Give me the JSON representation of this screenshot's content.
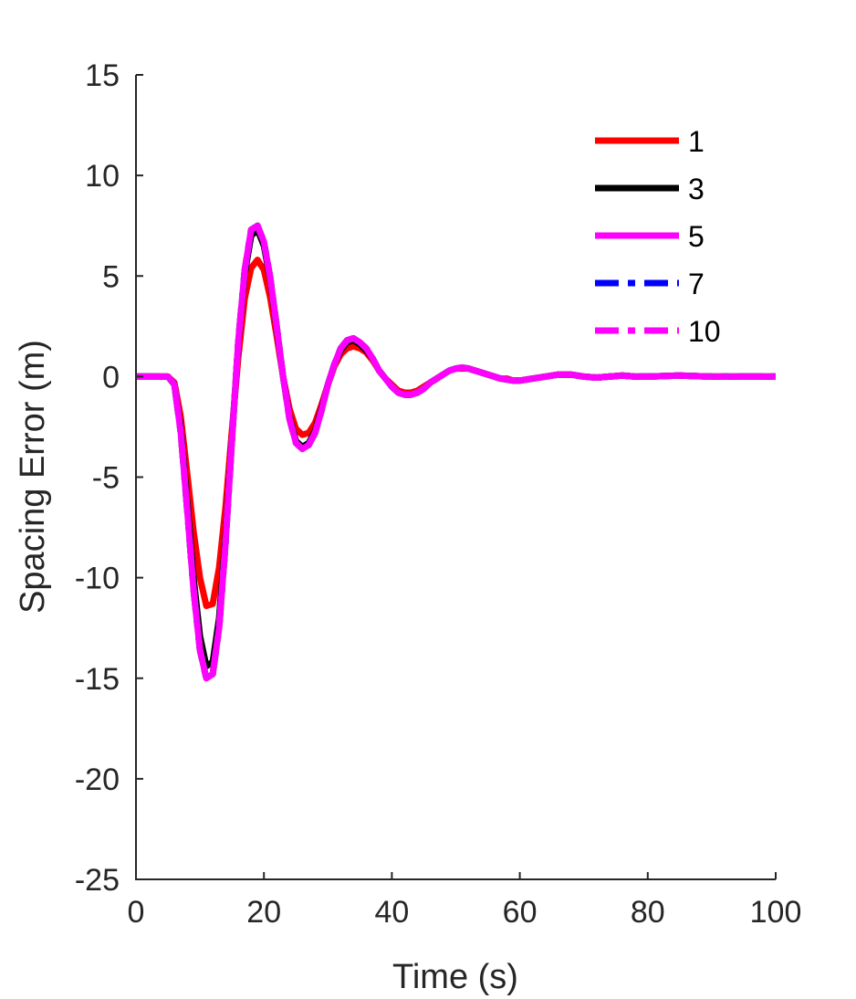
{
  "chart_data": {
    "type": "line",
    "title": "",
    "xlabel": "Time (s)",
    "ylabel": "Spacing Error (m)",
    "xlim": [
      0,
      100
    ],
    "ylim": [
      -25,
      15
    ],
    "xticks": [
      0,
      20,
      40,
      60,
      80,
      100
    ],
    "yticks": [
      -25,
      -20,
      -15,
      -10,
      -5,
      0,
      5,
      10,
      15
    ],
    "xtick_labels": [
      "0",
      "20",
      "40",
      "60",
      "80",
      "100"
    ],
    "ytick_labels": [
      "-25",
      "-20",
      "-15",
      "-10",
      "-5",
      "0",
      "5",
      "10",
      "15"
    ],
    "grid": false,
    "legend_position": "top-right",
    "series": [
      {
        "name": "1",
        "color": "#ff0000",
        "dash": "solid",
        "x": [
          0,
          5,
          6,
          7,
          8,
          9,
          10,
          11,
          12,
          13,
          14,
          15,
          16,
          17,
          18,
          19,
          20,
          21,
          22,
          23,
          24,
          25,
          26,
          27,
          28,
          29,
          30,
          31,
          32,
          33,
          34,
          35,
          36,
          37,
          38,
          39,
          40,
          41,
          42,
          43,
          44,
          45,
          46,
          47,
          48,
          49,
          50,
          51,
          52,
          53,
          54,
          55,
          56,
          57,
          58,
          59,
          60,
          62,
          64,
          66,
          68,
          70,
          72,
          74,
          76,
          78,
          80,
          85,
          90,
          95,
          100
        ],
        "values": [
          0,
          0,
          -0.3,
          -2.0,
          -4.8,
          -7.7,
          -10.0,
          -11.4,
          -11.3,
          -9.5,
          -6.5,
          -2.7,
          1.0,
          3.9,
          5.4,
          5.8,
          5.3,
          3.9,
          2.0,
          0.0,
          -1.6,
          -2.6,
          -2.9,
          -2.8,
          -2.3,
          -1.4,
          -0.4,
          0.5,
          1.1,
          1.4,
          1.5,
          1.4,
          1.2,
          0.8,
          0.3,
          -0.1,
          -0.4,
          -0.7,
          -0.8,
          -0.8,
          -0.7,
          -0.5,
          -0.3,
          -0.1,
          0.1,
          0.3,
          0.4,
          0.4,
          0.4,
          0.3,
          0.2,
          0.1,
          0.0,
          -0.1,
          -0.1,
          -0.2,
          -0.2,
          -0.1,
          0.0,
          0.1,
          0.1,
          0.0,
          -0.05,
          0.0,
          0.05,
          0.0,
          0.0,
          0.05,
          0.0,
          0.0,
          0.0
        ]
      },
      {
        "name": "3",
        "color": "#000000",
        "dash": "solid",
        "x": [
          0,
          5,
          6,
          7,
          8,
          9,
          10,
          11,
          12,
          13,
          14,
          15,
          16,
          17,
          18,
          19,
          20,
          21,
          22,
          23,
          24,
          25,
          26,
          27,
          28,
          29,
          30,
          31,
          32,
          33,
          34,
          35,
          36,
          37,
          38,
          39,
          40,
          41,
          42,
          43,
          44,
          45,
          46,
          47,
          48,
          49,
          50,
          51,
          52,
          53,
          54,
          55,
          56,
          57,
          58,
          59,
          60,
          62,
          64,
          66,
          68,
          70,
          72,
          74,
          76,
          78,
          80,
          85,
          90,
          95,
          100
        ],
        "values": [
          0,
          0,
          -0.4,
          -2.6,
          -6.2,
          -10.0,
          -12.9,
          -14.4,
          -14.2,
          -12.0,
          -8.0,
          -3.1,
          1.7,
          5.1,
          7.0,
          7.3,
          6.5,
          4.8,
          2.4,
          0.0,
          -2.0,
          -3.2,
          -3.5,
          -3.3,
          -2.7,
          -1.6,
          -0.4,
          0.6,
          1.3,
          1.7,
          1.8,
          1.6,
          1.3,
          0.9,
          0.3,
          -0.1,
          -0.5,
          -0.8,
          -0.9,
          -0.9,
          -0.8,
          -0.6,
          -0.3,
          -0.1,
          0.1,
          0.3,
          0.4,
          0.45,
          0.4,
          0.3,
          0.2,
          0.1,
          0.0,
          -0.1,
          -0.15,
          -0.2,
          -0.2,
          -0.1,
          0.0,
          0.1,
          0.1,
          0.0,
          -0.05,
          0.0,
          0.05,
          0.0,
          0.0,
          0.05,
          0.0,
          0.0,
          0.0
        ]
      },
      {
        "name": "5",
        "color": "#ff00ff",
        "dash": "solid",
        "x": [
          0,
          5,
          6,
          7,
          8,
          9,
          10,
          11,
          12,
          13,
          14,
          15,
          16,
          17,
          18,
          19,
          20,
          21,
          22,
          23,
          24,
          25,
          26,
          27,
          28,
          29,
          30,
          31,
          32,
          33,
          34,
          35,
          36,
          37,
          38,
          39,
          40,
          41,
          42,
          43,
          44,
          45,
          46,
          47,
          48,
          49,
          50,
          51,
          52,
          53,
          54,
          55,
          56,
          57,
          58,
          59,
          60,
          62,
          64,
          66,
          68,
          70,
          72,
          74,
          76,
          78,
          80,
          85,
          90,
          95,
          100
        ],
        "values": [
          0,
          0,
          -0.4,
          -2.8,
          -6.6,
          -10.6,
          -13.6,
          -15.0,
          -14.8,
          -12.5,
          -8.3,
          -3.2,
          1.8,
          5.3,
          7.3,
          7.5,
          6.7,
          4.9,
          2.5,
          0.0,
          -2.1,
          -3.3,
          -3.6,
          -3.4,
          -2.8,
          -1.7,
          -0.4,
          0.6,
          1.4,
          1.8,
          1.9,
          1.7,
          1.4,
          0.9,
          0.3,
          -0.1,
          -0.5,
          -0.8,
          -0.9,
          -0.9,
          -0.8,
          -0.6,
          -0.3,
          -0.1,
          0.1,
          0.3,
          0.4,
          0.45,
          0.4,
          0.3,
          0.2,
          0.1,
          0.0,
          -0.1,
          -0.15,
          -0.2,
          -0.2,
          -0.1,
          0.0,
          0.1,
          0.1,
          0.0,
          -0.05,
          0.0,
          0.05,
          0.0,
          0.0,
          0.05,
          0.0,
          0.0,
          0.0
        ]
      },
      {
        "name": "7",
        "color": "#0000ff",
        "dash": "dashdot",
        "x": [
          0,
          5,
          6,
          7,
          8,
          9,
          10,
          11,
          12,
          13,
          14,
          15,
          16,
          17,
          18,
          19,
          20,
          21,
          22,
          23,
          24,
          25,
          26,
          27,
          28,
          29,
          30,
          31,
          32,
          33,
          34,
          35,
          36,
          37,
          38,
          39,
          40,
          41,
          42,
          43,
          44,
          45,
          46,
          47,
          48,
          49,
          50,
          51,
          52,
          53,
          54,
          55,
          56,
          57,
          58,
          59,
          60,
          62,
          64,
          66,
          68,
          70,
          72,
          74,
          76,
          78,
          80,
          85,
          90,
          95,
          100
        ],
        "values": [
          0,
          0,
          -0.4,
          -2.8,
          -6.6,
          -10.6,
          -13.6,
          -15.0,
          -14.8,
          -12.5,
          -8.3,
          -3.2,
          1.8,
          5.3,
          7.3,
          7.5,
          6.7,
          4.9,
          2.5,
          0.0,
          -2.1,
          -3.3,
          -3.6,
          -3.4,
          -2.8,
          -1.7,
          -0.4,
          0.6,
          1.4,
          1.8,
          1.9,
          1.7,
          1.4,
          0.9,
          0.3,
          -0.1,
          -0.5,
          -0.8,
          -0.9,
          -0.9,
          -0.8,
          -0.6,
          -0.3,
          -0.1,
          0.1,
          0.3,
          0.4,
          0.45,
          0.4,
          0.3,
          0.2,
          0.1,
          0.0,
          -0.1,
          -0.15,
          -0.2,
          -0.2,
          -0.1,
          0.0,
          0.1,
          0.1,
          0.0,
          -0.05,
          0.0,
          0.05,
          0.0,
          0.0,
          0.05,
          0.0,
          0.0,
          0.0
        ]
      },
      {
        "name": "",
        "color": "#00dd00",
        "dash": "dashdot",
        "x": [
          0,
          5,
          6,
          7,
          8,
          9,
          10,
          11,
          12,
          13,
          14,
          15,
          16,
          17,
          18,
          19,
          20,
          21,
          22,
          23,
          24,
          25,
          26,
          27,
          28,
          29,
          30,
          31,
          32,
          33,
          34,
          35,
          36,
          37,
          38,
          39,
          40,
          41,
          42,
          43,
          44,
          45,
          46,
          47,
          48,
          49,
          50,
          51,
          52,
          53,
          54,
          55,
          56,
          57,
          58,
          59,
          60,
          62,
          64,
          66,
          68,
          70,
          72,
          74,
          76,
          78,
          80,
          85,
          90,
          95,
          100
        ],
        "values": [
          0,
          0,
          -0.4,
          -2.8,
          -6.6,
          -10.6,
          -13.6,
          -15.0,
          -14.8,
          -12.5,
          -8.3,
          -3.2,
          1.8,
          5.3,
          7.3,
          7.5,
          6.7,
          4.9,
          2.5,
          0.0,
          -2.1,
          -3.3,
          -3.6,
          -3.4,
          -2.8,
          -1.7,
          -0.4,
          0.6,
          1.4,
          1.8,
          1.9,
          1.7,
          1.4,
          0.9,
          0.3,
          -0.1,
          -0.5,
          -0.8,
          -0.9,
          -0.9,
          -0.8,
          -0.6,
          -0.3,
          -0.1,
          0.1,
          0.3,
          0.4,
          0.45,
          0.4,
          0.3,
          0.2,
          0.1,
          0.0,
          -0.1,
          -0.15,
          -0.2,
          -0.2,
          -0.1,
          0.0,
          0.1,
          0.1,
          0.0,
          -0.05,
          0.0,
          0.05,
          0.0,
          0.0,
          0.05,
          0.0,
          0.0,
          0.0
        ]
      },
      {
        "name": "10",
        "color": "#ff00ff",
        "dash": "dashdot",
        "x": [
          0,
          5,
          6,
          7,
          8,
          9,
          10,
          11,
          12,
          13,
          14,
          15,
          16,
          17,
          18,
          19,
          20,
          21,
          22,
          23,
          24,
          25,
          26,
          27,
          28,
          29,
          30,
          31,
          32,
          33,
          34,
          35,
          36,
          37,
          38,
          39,
          40,
          41,
          42,
          43,
          44,
          45,
          46,
          47,
          48,
          49,
          50,
          51,
          52,
          53,
          54,
          55,
          56,
          57,
          58,
          59,
          60,
          62,
          64,
          66,
          68,
          70,
          72,
          74,
          76,
          78,
          80,
          85,
          90,
          95,
          100
        ],
        "values": [
          0,
          0,
          -0.4,
          -2.8,
          -6.6,
          -10.6,
          -13.6,
          -15.0,
          -14.8,
          -12.5,
          -8.3,
          -3.2,
          1.8,
          5.3,
          7.3,
          7.5,
          6.7,
          4.9,
          2.5,
          0.0,
          -2.1,
          -3.3,
          -3.6,
          -3.4,
          -2.8,
          -1.7,
          -0.4,
          0.6,
          1.4,
          1.8,
          1.9,
          1.7,
          1.4,
          0.9,
          0.3,
          -0.1,
          -0.5,
          -0.8,
          -0.9,
          -0.9,
          -0.8,
          -0.6,
          -0.3,
          -0.1,
          0.1,
          0.3,
          0.4,
          0.45,
          0.4,
          0.3,
          0.2,
          0.1,
          0.0,
          -0.1,
          -0.15,
          -0.2,
          -0.2,
          -0.1,
          0.0,
          0.1,
          0.1,
          0.0,
          -0.05,
          0.0,
          0.05,
          0.0,
          0.0,
          0.05,
          0.0,
          0.0,
          0.0
        ]
      }
    ]
  }
}
